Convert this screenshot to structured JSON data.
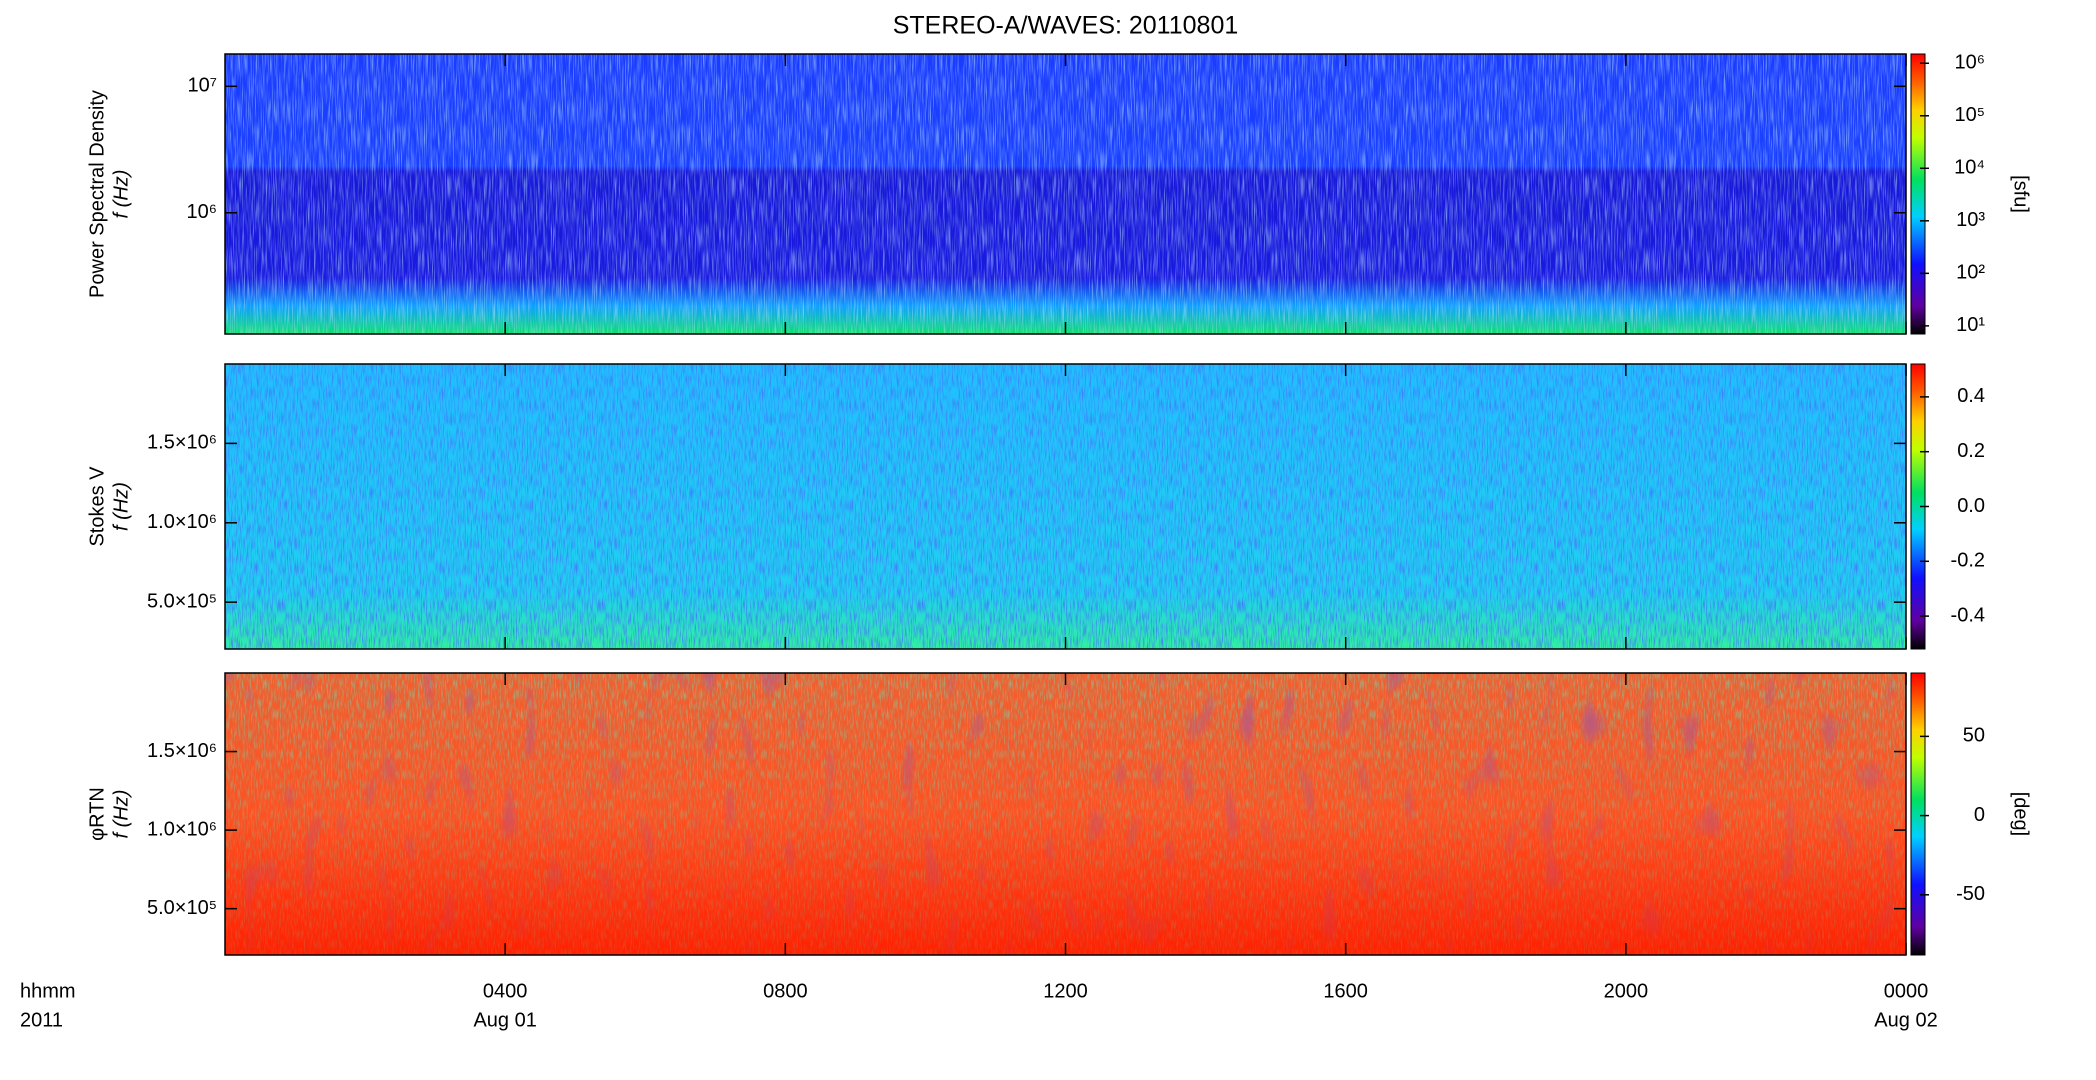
{
  "chart_data": [
    {
      "type": "spectrogram",
      "title": "STEREO-A/WAVES: 20110801",
      "ylabel": [
        "Power Spectral Density",
        "f (Hz)"
      ],
      "ylog": true,
      "ylim": [
        110000,
        18000000
      ],
      "yticks": [
        {
          "value": 1000000,
          "label": "10⁶"
        },
        {
          "value": 10000000,
          "label": "10⁷"
        }
      ],
      "colorbar": {
        "label": "[sfu]",
        "log": true,
        "lim": [
          7,
          1500000
        ],
        "ticks": [
          {
            "value": 10,
            "label": "10¹"
          },
          {
            "value": 100,
            "label": "10²"
          },
          {
            "value": 1000,
            "label": "10³"
          },
          {
            "value": 10000,
            "label": "10⁴"
          },
          {
            "value": 100000,
            "label": "10⁵"
          },
          {
            "value": 1000000,
            "label": "10⁶"
          }
        ]
      }
    },
    {
      "type": "spectrogram",
      "ylabel": [
        "Stokes V",
        "f (Hz)"
      ],
      "ylog": false,
      "ylim": [
        205000,
        2000000
      ],
      "yticks": [
        {
          "value": 500000,
          "label": "5.0×10⁵"
        },
        {
          "value": 1000000,
          "label": "1.0×10⁶"
        },
        {
          "value": 1500000,
          "label": "1.5×10⁶"
        }
      ],
      "colorbar": {
        "log": false,
        "lim": [
          -0.52,
          0.52
        ],
        "ticks": [
          -0.4,
          -0.2,
          {
            "value": 0,
            "label": "0.0"
          },
          0.2,
          0.4
        ]
      }
    },
    {
      "type": "spectrogram",
      "ylabel": [
        "φRTN",
        "f (Hz)"
      ],
      "ylog": false,
      "ylim": [
        205000,
        2000000
      ],
      "yticks": [
        {
          "value": 500000,
          "label": "5.0×10⁵"
        },
        {
          "value": 1000000,
          "label": "1.0×10⁶"
        },
        {
          "value": 1500000,
          "label": "1.5×10⁶"
        }
      ],
      "colorbar": {
        "label": "[deg]",
        "log": false,
        "lim": [
          -88,
          90
        ],
        "ticks": [
          -50,
          0,
          50
        ]
      },
      "xlim": [
        0,
        24
      ],
      "xticks": [
        {
          "value": 4,
          "label": "0400"
        },
        {
          "value": 8,
          "label": "0800"
        },
        {
          "value": 12,
          "label": "1200"
        },
        {
          "value": 16,
          "label": "1600"
        },
        {
          "value": 20,
          "label": "2000"
        },
        {
          "value": 24,
          "label": "0000"
        }
      ],
      "date_labels": [
        {
          "value": 4,
          "label": "Aug 01"
        },
        {
          "value": 24,
          "label": "Aug 02"
        }
      ],
      "corner_label": [
        "hhmm",
        "2011"
      ]
    }
  ]
}
